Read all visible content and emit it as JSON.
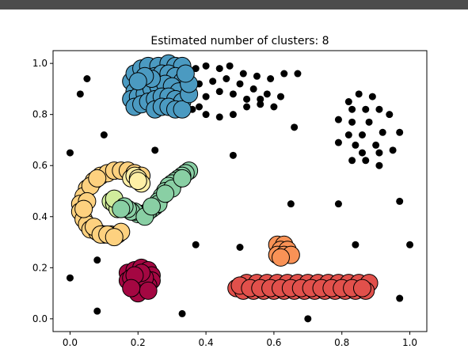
{
  "chart_data": {
    "type": "scatter",
    "title": "Estimated number of clusters: 8",
    "xlabel": "",
    "ylabel": "",
    "xlim": [
      -0.05,
      1.05
    ],
    "ylim": [
      -0.05,
      1.05
    ],
    "x_ticks": [
      0.0,
      0.2,
      0.4,
      0.6,
      0.8,
      1.0
    ],
    "y_ticks": [
      0.0,
      0.2,
      0.4,
      0.6,
      0.8,
      1.0
    ],
    "x_tick_labels": [
      "0.0",
      "0.2",
      "0.4",
      "0.6",
      "0.8",
      "1.0"
    ],
    "y_tick_labels": [
      "0.0",
      "0.2",
      "0.4",
      "0.6",
      "0.8",
      "1.0"
    ],
    "grid": false,
    "legend": "none",
    "noise_color": "#000000",
    "clusters": [
      {
        "color": "#4b9ac1",
        "points": [
          [
            0.18,
            0.93
          ],
          [
            0.19,
            0.96
          ],
          [
            0.21,
            0.98
          ],
          [
            0.23,
            0.99
          ],
          [
            0.26,
            0.99
          ],
          [
            0.29,
            1.0
          ],
          [
            0.31,
            0.99
          ],
          [
            0.33,
            0.99
          ],
          [
            0.19,
            0.89
          ],
          [
            0.21,
            0.91
          ],
          [
            0.23,
            0.93
          ],
          [
            0.25,
            0.95
          ],
          [
            0.27,
            0.96
          ],
          [
            0.29,
            0.96
          ],
          [
            0.31,
            0.95
          ],
          [
            0.33,
            0.93
          ],
          [
            0.18,
            0.86
          ],
          [
            0.2,
            0.87
          ],
          [
            0.22,
            0.88
          ],
          [
            0.24,
            0.9
          ],
          [
            0.26,
            0.91
          ],
          [
            0.28,
            0.92
          ],
          [
            0.3,
            0.91
          ],
          [
            0.32,
            0.89
          ],
          [
            0.19,
            0.83
          ],
          [
            0.21,
            0.84
          ],
          [
            0.23,
            0.85
          ],
          [
            0.25,
            0.86
          ],
          [
            0.27,
            0.87
          ],
          [
            0.29,
            0.87
          ],
          [
            0.31,
            0.86
          ],
          [
            0.33,
            0.85
          ],
          [
            0.25,
            0.82
          ],
          [
            0.27,
            0.83
          ],
          [
            0.29,
            0.83
          ],
          [
            0.31,
            0.82
          ],
          [
            0.33,
            0.82
          ],
          [
            0.35,
            0.88
          ],
          [
            0.35,
            0.92
          ],
          [
            0.34,
            0.96
          ],
          [
            0.24,
            0.94
          ],
          [
            0.22,
            0.95
          ],
          [
            0.2,
            0.93
          ]
        ]
      },
      {
        "color": "#fdd17f",
        "points": [
          [
            0.07,
            0.54
          ],
          [
            0.09,
            0.56
          ],
          [
            0.11,
            0.57
          ],
          [
            0.13,
            0.58
          ],
          [
            0.15,
            0.58
          ],
          [
            0.17,
            0.58
          ],
          [
            0.19,
            0.57
          ],
          [
            0.21,
            0.56
          ],
          [
            0.05,
            0.51
          ],
          [
            0.04,
            0.48
          ],
          [
            0.03,
            0.45
          ],
          [
            0.03,
            0.42
          ],
          [
            0.04,
            0.39
          ],
          [
            0.05,
            0.37
          ],
          [
            0.06,
            0.35
          ],
          [
            0.08,
            0.34
          ],
          [
            0.1,
            0.33
          ],
          [
            0.12,
            0.33
          ],
          [
            0.14,
            0.33
          ],
          [
            0.15,
            0.34
          ],
          [
            0.06,
            0.52
          ],
          [
            0.05,
            0.46
          ],
          [
            0.08,
            0.55
          ],
          [
            0.04,
            0.43
          ],
          [
            0.07,
            0.36
          ],
          [
            0.09,
            0.33
          ],
          [
            0.11,
            0.33
          ],
          [
            0.13,
            0.32
          ]
        ]
      },
      {
        "color": "#feefa6",
        "points": [
          [
            0.18,
            0.55
          ],
          [
            0.19,
            0.56
          ],
          [
            0.2,
            0.55
          ],
          [
            0.21,
            0.53
          ],
          [
            0.2,
            0.54
          ]
        ]
      },
      {
        "color": "#d1ec9c",
        "points": [
          [
            0.12,
            0.46
          ],
          [
            0.13,
            0.45
          ],
          [
            0.14,
            0.43
          ],
          [
            0.15,
            0.44
          ],
          [
            0.13,
            0.47
          ]
        ]
      },
      {
        "color": "#89cfa4",
        "points": [
          [
            0.35,
            0.58
          ],
          [
            0.34,
            0.57
          ],
          [
            0.33,
            0.56
          ],
          [
            0.32,
            0.55
          ],
          [
            0.31,
            0.54
          ],
          [
            0.3,
            0.53
          ],
          [
            0.29,
            0.52
          ],
          [
            0.28,
            0.5
          ],
          [
            0.27,
            0.48
          ],
          [
            0.26,
            0.46
          ],
          [
            0.25,
            0.44
          ],
          [
            0.24,
            0.43
          ],
          [
            0.23,
            0.42
          ],
          [
            0.22,
            0.41
          ],
          [
            0.21,
            0.41
          ],
          [
            0.2,
            0.41
          ],
          [
            0.19,
            0.42
          ],
          [
            0.18,
            0.42
          ],
          [
            0.17,
            0.43
          ],
          [
            0.16,
            0.44
          ],
          [
            0.15,
            0.43
          ],
          [
            0.22,
            0.4
          ],
          [
            0.26,
            0.45
          ],
          [
            0.3,
            0.51
          ],
          [
            0.33,
            0.55
          ],
          [
            0.28,
            0.49
          ],
          [
            0.24,
            0.44
          ]
        ]
      },
      {
        "color": "#f99256",
        "points": [
          [
            0.61,
            0.29
          ],
          [
            0.63,
            0.29
          ],
          [
            0.62,
            0.27
          ],
          [
            0.64,
            0.27
          ],
          [
            0.61,
            0.25
          ],
          [
            0.63,
            0.25
          ],
          [
            0.65,
            0.25
          ],
          [
            0.62,
            0.24
          ]
        ]
      },
      {
        "color": "#e1504b",
        "points": [
          [
            0.49,
            0.12
          ],
          [
            0.52,
            0.14
          ],
          [
            0.55,
            0.14
          ],
          [
            0.58,
            0.14
          ],
          [
            0.61,
            0.14
          ],
          [
            0.64,
            0.14
          ],
          [
            0.67,
            0.14
          ],
          [
            0.7,
            0.14
          ],
          [
            0.73,
            0.14
          ],
          [
            0.76,
            0.14
          ],
          [
            0.79,
            0.14
          ],
          [
            0.82,
            0.14
          ],
          [
            0.85,
            0.14
          ],
          [
            0.88,
            0.14
          ],
          [
            0.51,
            0.11
          ],
          [
            0.54,
            0.11
          ],
          [
            0.57,
            0.11
          ],
          [
            0.6,
            0.11
          ],
          [
            0.63,
            0.11
          ],
          [
            0.66,
            0.11
          ],
          [
            0.69,
            0.11
          ],
          [
            0.72,
            0.11
          ],
          [
            0.75,
            0.11
          ],
          [
            0.78,
            0.11
          ],
          [
            0.81,
            0.11
          ],
          [
            0.84,
            0.11
          ],
          [
            0.87,
            0.11
          ],
          [
            0.5,
            0.13
          ],
          [
            0.53,
            0.12
          ],
          [
            0.56,
            0.12
          ],
          [
            0.59,
            0.12
          ],
          [
            0.62,
            0.12
          ],
          [
            0.65,
            0.12
          ],
          [
            0.68,
            0.12
          ],
          [
            0.71,
            0.12
          ],
          [
            0.74,
            0.12
          ],
          [
            0.77,
            0.12
          ],
          [
            0.8,
            0.12
          ],
          [
            0.83,
            0.12
          ],
          [
            0.86,
            0.12
          ]
        ]
      },
      {
        "color": "#a40742",
        "points": [
          [
            0.17,
            0.18
          ],
          [
            0.19,
            0.19
          ],
          [
            0.21,
            0.2
          ],
          [
            0.23,
            0.19
          ],
          [
            0.24,
            0.17
          ],
          [
            0.24,
            0.15
          ],
          [
            0.23,
            0.13
          ],
          [
            0.21,
            0.12
          ],
          [
            0.19,
            0.13
          ],
          [
            0.17,
            0.15
          ],
          [
            0.18,
            0.16
          ],
          [
            0.2,
            0.15
          ],
          [
            0.22,
            0.16
          ],
          [
            0.21,
            0.18
          ],
          [
            0.19,
            0.17
          ],
          [
            0.2,
            0.1
          ],
          [
            0.23,
            0.11
          ],
          [
            0.18,
            0.12
          ]
        ]
      }
    ],
    "noise_points": [
      [
        0.0,
        0.65
      ],
      [
        0.03,
        0.88
      ],
      [
        0.05,
        0.94
      ],
      [
        0.1,
        0.72
      ],
      [
        0.25,
        0.66
      ],
      [
        0.37,
        0.98
      ],
      [
        0.4,
        0.99
      ],
      [
        0.44,
        0.98
      ],
      [
        0.47,
        0.99
      ],
      [
        0.51,
        0.96
      ],
      [
        0.55,
        0.95
      ],
      [
        0.59,
        0.94
      ],
      [
        0.63,
        0.96
      ],
      [
        0.67,
        0.96
      ],
      [
        0.38,
        0.92
      ],
      [
        0.42,
        0.93
      ],
      [
        0.46,
        0.94
      ],
      [
        0.5,
        0.92
      ],
      [
        0.54,
        0.9
      ],
      [
        0.58,
        0.88
      ],
      [
        0.62,
        0.87
      ],
      [
        0.36,
        0.88
      ],
      [
        0.4,
        0.87
      ],
      [
        0.44,
        0.89
      ],
      [
        0.48,
        0.88
      ],
      [
        0.52,
        0.86
      ],
      [
        0.56,
        0.86
      ],
      [
        0.6,
        0.83
      ],
      [
        0.36,
        0.82
      ],
      [
        0.4,
        0.8
      ],
      [
        0.44,
        0.79
      ],
      [
        0.48,
        0.8
      ],
      [
        0.52,
        0.83
      ],
      [
        0.56,
        0.84
      ],
      [
        0.38,
        0.83
      ],
      [
        0.66,
        0.75
      ],
      [
        0.48,
        0.64
      ],
      [
        0.82,
        0.85
      ],
      [
        0.85,
        0.88
      ],
      [
        0.89,
        0.87
      ],
      [
        0.83,
        0.82
      ],
      [
        0.87,
        0.82
      ],
      [
        0.91,
        0.82
      ],
      [
        0.79,
        0.78
      ],
      [
        0.83,
        0.77
      ],
      [
        0.88,
        0.77
      ],
      [
        0.94,
        0.8
      ],
      [
        0.97,
        0.73
      ],
      [
        0.82,
        0.72
      ],
      [
        0.86,
        0.72
      ],
      [
        0.92,
        0.73
      ],
      [
        0.79,
        0.69
      ],
      [
        0.84,
        0.68
      ],
      [
        0.9,
        0.68
      ],
      [
        0.86,
        0.65
      ],
      [
        0.91,
        0.65
      ],
      [
        0.95,
        0.66
      ],
      [
        0.83,
        0.62
      ],
      [
        0.87,
        0.62
      ],
      [
        0.91,
        0.6
      ],
      [
        0.65,
        0.45
      ],
      [
        0.79,
        0.45
      ],
      [
        0.97,
        0.46
      ],
      [
        0.37,
        0.29
      ],
      [
        0.5,
        0.28
      ],
      [
        0.84,
        0.29
      ],
      [
        1.0,
        0.29
      ],
      [
        0.08,
        0.23
      ],
      [
        0.0,
        0.16
      ],
      [
        0.08,
        0.03
      ],
      [
        0.33,
        0.02
      ],
      [
        0.7,
        0.0
      ],
      [
        0.97,
        0.08
      ]
    ]
  }
}
